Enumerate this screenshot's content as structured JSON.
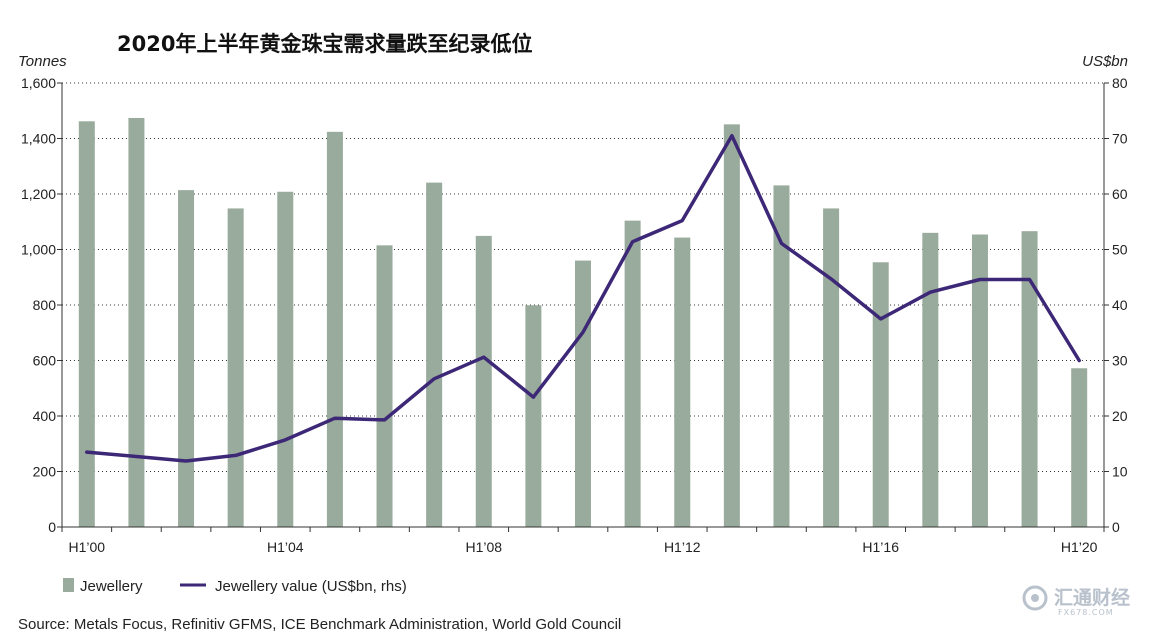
{
  "chart_data": {
    "type": "bar+line",
    "title": "2020年上半年黄金珠宝需求量跌至纪录低位",
    "ylabel_left": "Tonnes",
    "ylabel_right": "US$bn",
    "ylim_left": [
      0,
      1600
    ],
    "ylim_right": [
      0,
      80
    ],
    "yticks_left": [
      "0",
      "200",
      "400",
      "600",
      "800",
      "1,000",
      "1,200",
      "1,400",
      "1,600"
    ],
    "yticks_right": [
      "0",
      "10",
      "20",
      "30",
      "40",
      "50",
      "60",
      "70",
      "80"
    ],
    "categories": [
      "H1'00",
      "H1'01",
      "H1'02",
      "H1'03",
      "H1'04",
      "H1'05",
      "H1'06",
      "H1'07",
      "H1'08",
      "H1'09",
      "H1'10",
      "H1'11",
      "H1'12",
      "H1'13",
      "H1'14",
      "H1'15",
      "H1'16",
      "H1'17",
      "H1'18",
      "H1'19",
      "H1'20"
    ],
    "x_tick_labels": [
      {
        "index": 0,
        "label": "H1’00"
      },
      {
        "index": 4,
        "label": "H1’04"
      },
      {
        "index": 8,
        "label": "H1’08"
      },
      {
        "index": 12,
        "label": "H1’12"
      },
      {
        "index": 16,
        "label": "H1’16"
      },
      {
        "index": 20,
        "label": "H1’20"
      }
    ],
    "series": [
      {
        "name": "Jewellery",
        "type": "bar",
        "axis": "left",
        "color": "#99ab9c",
        "values": [
          1462,
          1474,
          1214,
          1148,
          1208,
          1424,
          1015,
          1241,
          1049,
          799,
          960,
          1104,
          1043,
          1451,
          1231,
          1148,
          954,
          1060,
          1054,
          1066,
          572
        ]
      },
      {
        "name": "Jewellery value (US$bn, rhs)",
        "type": "line",
        "axis": "right",
        "color": "#3d2877",
        "values": [
          13.5,
          12.7,
          11.9,
          12.9,
          15.7,
          19.6,
          19.3,
          26.7,
          30.6,
          23.4,
          35.1,
          51.4,
          55.2,
          70.5,
          51.1,
          44.7,
          37.5,
          42.3,
          44.6,
          44.6,
          30.0
        ]
      }
    ],
    "grid": "horizontal dotted",
    "legend_position": "bottom-left"
  },
  "source": "Source: Metals Focus, Refinitiv GFMS, ICE Benchmark Administration, World Gold Council",
  "watermark": {
    "main": "汇通财经",
    "sub": "FX678.COM"
  }
}
